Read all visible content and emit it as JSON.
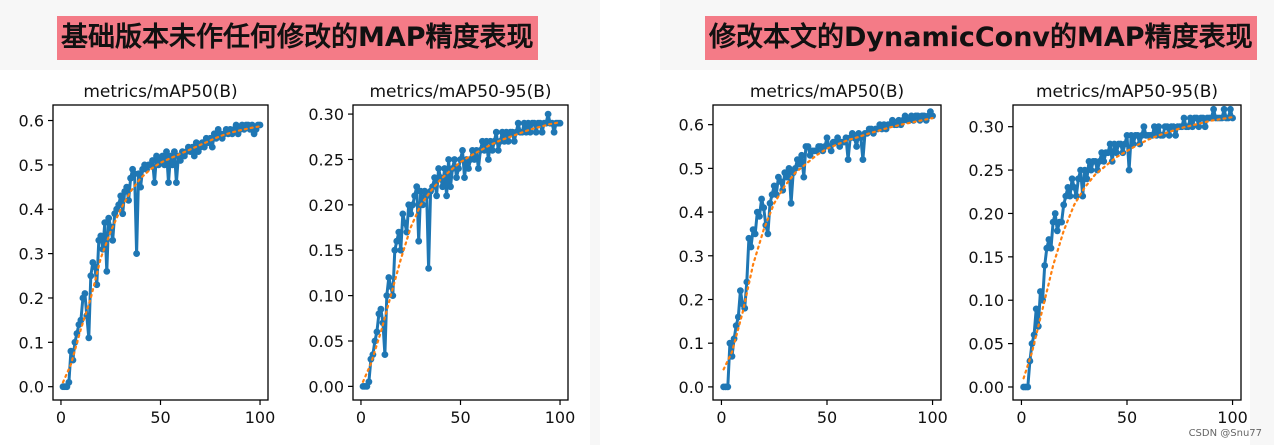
{
  "headings": {
    "left": "基础版本未作任何修改的MAP精度表现",
    "right": "修改本文的DynamicConv的MAP精度表现"
  },
  "watermark": "CSDN @Snu77",
  "colors": {
    "line": "#1f77b4",
    "smooth": "#ff7f0e",
    "heading_bg": "#f47b87"
  },
  "chart_data": [
    {
      "type": "line",
      "title": "metrics/mAP50(B)",
      "xlim": [
        -4,
        104
      ],
      "ylim": [
        -0.03,
        0.635
      ],
      "xticks": [
        0,
        50,
        100
      ],
      "yticks": [
        0.0,
        0.1,
        0.2,
        0.3,
        0.4,
        0.5,
        0.6
      ],
      "ytick_labels": [
        "0.0",
        "0.1",
        "0.2",
        "0.3",
        "0.4",
        "0.5",
        "0.6"
      ],
      "grid": false,
      "series": [
        {
          "kind": "results",
          "x": [
            1,
            2,
            3,
            4,
            5,
            6,
            7,
            8,
            9,
            10,
            11,
            12,
            13,
            14,
            15,
            16,
            17,
            18,
            19,
            20,
            21,
            22,
            23,
            24,
            25,
            26,
            27,
            28,
            29,
            30,
            31,
            32,
            33,
            34,
            35,
            36,
            37,
            38,
            39,
            40,
            41,
            42,
            43,
            44,
            45,
            46,
            47,
            48,
            49,
            50,
            51,
            52,
            53,
            54,
            55,
            56,
            57,
            58,
            59,
            60,
            61,
            62,
            63,
            64,
            65,
            66,
            67,
            68,
            69,
            70,
            71,
            72,
            73,
            74,
            75,
            76,
            77,
            78,
            79,
            80,
            81,
            82,
            83,
            84,
            85,
            86,
            87,
            88,
            89,
            90,
            91,
            92,
            93,
            94,
            95,
            96,
            97,
            98,
            99,
            100
          ],
          "y": [
            0.0,
            0.0,
            0.0,
            0.01,
            0.08,
            0.06,
            0.1,
            0.12,
            0.14,
            0.15,
            0.2,
            0.21,
            0.16,
            0.11,
            0.25,
            0.28,
            0.27,
            0.23,
            0.33,
            0.34,
            0.31,
            0.37,
            0.26,
            0.38,
            0.36,
            0.33,
            0.39,
            0.4,
            0.41,
            0.43,
            0.39,
            0.44,
            0.45,
            0.42,
            0.47,
            0.49,
            0.48,
            0.3,
            0.48,
            0.45,
            0.49,
            0.5,
            0.49,
            0.5,
            0.5,
            0.51,
            0.46,
            0.52,
            0.5,
            0.51,
            0.52,
            0.5,
            0.53,
            0.46,
            0.52,
            0.5,
            0.53,
            0.46,
            0.52,
            0.51,
            0.53,
            0.52,
            0.53,
            0.54,
            0.53,
            0.54,
            0.52,
            0.55,
            0.53,
            0.54,
            0.55,
            0.54,
            0.56,
            0.55,
            0.56,
            0.54,
            0.57,
            0.56,
            0.58,
            0.57,
            0.56,
            0.57,
            0.58,
            0.57,
            0.58,
            0.57,
            0.58,
            0.59,
            0.57,
            0.58,
            0.59,
            0.58,
            0.59,
            0.59,
            0.58,
            0.59,
            0.57,
            0.58,
            0.59,
            0.59
          ]
        },
        {
          "kind": "smooth",
          "x": [
            1,
            5,
            10,
            15,
            20,
            25,
            30,
            35,
            40,
            45,
            50,
            55,
            60,
            65,
            70,
            75,
            80,
            85,
            90,
            95,
            100
          ],
          "y": [
            0.01,
            0.05,
            0.13,
            0.2,
            0.29,
            0.35,
            0.4,
            0.44,
            0.47,
            0.49,
            0.505,
            0.515,
            0.525,
            0.535,
            0.545,
            0.555,
            0.565,
            0.572,
            0.578,
            0.583,
            0.587
          ]
        }
      ]
    },
    {
      "type": "line",
      "title": "metrics/mAP50-95(B)",
      "xlim": [
        -4,
        104
      ],
      "ylim": [
        -0.015,
        0.31
      ],
      "xticks": [
        0,
        50,
        100
      ],
      "yticks": [
        0.0,
        0.05,
        0.1,
        0.15,
        0.2,
        0.25,
        0.3
      ],
      "ytick_labels": [
        "0.00",
        "0.05",
        "0.10",
        "0.15",
        "0.20",
        "0.25",
        "0.30"
      ],
      "grid": false,
      "series": [
        {
          "kind": "results",
          "x": [
            1,
            2,
            3,
            4,
            5,
            6,
            7,
            8,
            9,
            10,
            11,
            12,
            13,
            14,
            15,
            16,
            17,
            18,
            19,
            20,
            21,
            22,
            23,
            24,
            25,
            26,
            27,
            28,
            29,
            30,
            31,
            32,
            33,
            34,
            35,
            36,
            37,
            38,
            39,
            40,
            41,
            42,
            43,
            44,
            45,
            46,
            47,
            48,
            49,
            50,
            51,
            52,
            53,
            54,
            55,
            56,
            57,
            58,
            59,
            60,
            61,
            62,
            63,
            64,
            65,
            66,
            67,
            68,
            69,
            70,
            71,
            72,
            73,
            74,
            75,
            76,
            77,
            78,
            79,
            80,
            81,
            82,
            83,
            84,
            85,
            86,
            87,
            88,
            89,
            90,
            91,
            92,
            93,
            94,
            95,
            96,
            97,
            98,
            99,
            100
          ],
          "y": [
            0.0,
            0.0,
            0.0,
            0.005,
            0.03,
            0.035,
            0.05,
            0.06,
            0.08,
            0.085,
            0.07,
            0.035,
            0.1,
            0.12,
            0.11,
            0.1,
            0.15,
            0.16,
            0.17,
            0.15,
            0.19,
            0.18,
            0.17,
            0.2,
            0.19,
            0.2,
            0.21,
            0.22,
            0.16,
            0.215,
            0.2,
            0.215,
            0.21,
            0.13,
            0.215,
            0.22,
            0.23,
            0.21,
            0.24,
            0.23,
            0.22,
            0.24,
            0.21,
            0.25,
            0.22,
            0.24,
            0.25,
            0.23,
            0.24,
            0.25,
            0.26,
            0.23,
            0.25,
            0.24,
            0.25,
            0.26,
            0.25,
            0.26,
            0.24,
            0.26,
            0.27,
            0.26,
            0.27,
            0.25,
            0.27,
            0.26,
            0.27,
            0.28,
            0.26,
            0.27,
            0.28,
            0.27,
            0.28,
            0.27,
            0.28,
            0.28,
            0.27,
            0.28,
            0.29,
            0.28,
            0.28,
            0.29,
            0.28,
            0.29,
            0.28,
            0.29,
            0.29,
            0.28,
            0.29,
            0.29,
            0.28,
            0.29,
            0.29,
            0.3,
            0.29,
            0.29,
            0.28,
            0.29,
            0.29,
            0.29
          ]
        },
        {
          "kind": "smooth",
          "x": [
            1,
            5,
            10,
            15,
            20,
            25,
            30,
            35,
            40,
            45,
            50,
            55,
            60,
            65,
            70,
            75,
            80,
            85,
            90,
            95,
            100
          ],
          "y": [
            0.005,
            0.025,
            0.06,
            0.1,
            0.14,
            0.175,
            0.2,
            0.215,
            0.228,
            0.238,
            0.247,
            0.254,
            0.26,
            0.266,
            0.271,
            0.275,
            0.279,
            0.283,
            0.286,
            0.289,
            0.291
          ]
        }
      ]
    },
    {
      "type": "line",
      "title": "metrics/mAP50(B)",
      "xlim": [
        -4,
        104
      ],
      "ylim": [
        -0.03,
        0.645
      ],
      "xticks": [
        0,
        50,
        100
      ],
      "yticks": [
        0.0,
        0.1,
        0.2,
        0.3,
        0.4,
        0.5,
        0.6
      ],
      "ytick_labels": [
        "0.0",
        "0.1",
        "0.2",
        "0.3",
        "0.4",
        "0.5",
        "0.6"
      ],
      "grid": false,
      "series": [
        {
          "kind": "results",
          "x": [
            1,
            2,
            3,
            4,
            5,
            6,
            7,
            8,
            9,
            10,
            11,
            12,
            13,
            14,
            15,
            16,
            17,
            18,
            19,
            20,
            21,
            22,
            23,
            24,
            25,
            26,
            27,
            28,
            29,
            30,
            31,
            32,
            33,
            34,
            35,
            36,
            37,
            38,
            39,
            40,
            41,
            42,
            43,
            44,
            45,
            46,
            47,
            48,
            49,
            50,
            51,
            52,
            53,
            54,
            55,
            56,
            57,
            58,
            59,
            60,
            61,
            62,
            63,
            64,
            65,
            66,
            67,
            68,
            69,
            70,
            71,
            72,
            73,
            74,
            75,
            76,
            77,
            78,
            79,
            80,
            81,
            82,
            83,
            84,
            85,
            86,
            87,
            88,
            89,
            90,
            91,
            92,
            93,
            94,
            95,
            96,
            97,
            98,
            99,
            100
          ],
          "y": [
            0.0,
            0.0,
            0.0,
            0.1,
            0.07,
            0.11,
            0.14,
            0.16,
            0.22,
            0.19,
            0.18,
            0.24,
            0.34,
            0.32,
            0.36,
            0.35,
            0.4,
            0.39,
            0.43,
            0.41,
            0.37,
            0.35,
            0.42,
            0.44,
            0.46,
            0.44,
            0.48,
            0.47,
            0.45,
            0.49,
            0.48,
            0.5,
            0.42,
            0.49,
            0.5,
            0.52,
            0.51,
            0.53,
            0.48,
            0.55,
            0.55,
            0.53,
            0.54,
            0.54,
            0.54,
            0.55,
            0.55,
            0.54,
            0.55,
            0.57,
            0.55,
            0.54,
            0.56,
            0.56,
            0.57,
            0.55,
            0.56,
            0.56,
            0.57,
            0.52,
            0.57,
            0.58,
            0.57,
            0.55,
            0.58,
            0.57,
            0.52,
            0.58,
            0.58,
            0.59,
            0.59,
            0.58,
            0.59,
            0.59,
            0.6,
            0.59,
            0.6,
            0.59,
            0.6,
            0.6,
            0.61,
            0.6,
            0.6,
            0.61,
            0.6,
            0.61,
            0.62,
            0.61,
            0.61,
            0.62,
            0.61,
            0.62,
            0.62,
            0.61,
            0.62,
            0.62,
            0.61,
            0.62,
            0.63,
            0.62
          ]
        },
        {
          "kind": "smooth",
          "x": [
            1,
            5,
            10,
            15,
            20,
            25,
            30,
            35,
            40,
            45,
            50,
            55,
            60,
            65,
            70,
            75,
            80,
            85,
            90,
            95,
            100
          ],
          "y": [
            0.04,
            0.08,
            0.17,
            0.28,
            0.36,
            0.42,
            0.46,
            0.49,
            0.51,
            0.53,
            0.545,
            0.555,
            0.565,
            0.572,
            0.58,
            0.587,
            0.594,
            0.6,
            0.605,
            0.61,
            0.615
          ]
        }
      ]
    },
    {
      "type": "line",
      "title": "metrics/mAP50-95(B)",
      "xlim": [
        -4,
        104
      ],
      "ylim": [
        -0.015,
        0.325
      ],
      "xticks": [
        0,
        50,
        100
      ],
      "yticks": [
        0.0,
        0.05,
        0.1,
        0.15,
        0.2,
        0.25,
        0.3
      ],
      "ytick_labels": [
        "0.00",
        "0.05",
        "0.10",
        "0.15",
        "0.20",
        "0.25",
        "0.30"
      ],
      "grid": false,
      "series": [
        {
          "kind": "results",
          "x": [
            1,
            2,
            3,
            4,
            5,
            6,
            7,
            8,
            9,
            10,
            11,
            12,
            13,
            14,
            15,
            16,
            17,
            18,
            19,
            20,
            21,
            22,
            23,
            24,
            25,
            26,
            27,
            28,
            29,
            30,
            31,
            32,
            33,
            34,
            35,
            36,
            37,
            38,
            39,
            40,
            41,
            42,
            43,
            44,
            45,
            46,
            47,
            48,
            49,
            50,
            51,
            52,
            53,
            54,
            55,
            56,
            57,
            58,
            59,
            60,
            61,
            62,
            63,
            64,
            65,
            66,
            67,
            68,
            69,
            70,
            71,
            72,
            73,
            74,
            75,
            76,
            77,
            78,
            79,
            80,
            81,
            82,
            83,
            84,
            85,
            86,
            87,
            88,
            89,
            90,
            91,
            92,
            93,
            94,
            95,
            96,
            97,
            98,
            99,
            100
          ],
          "y": [
            0.0,
            0.0,
            0.0,
            0.03,
            0.05,
            0.06,
            0.09,
            0.07,
            0.11,
            0.1,
            0.14,
            0.16,
            0.17,
            0.16,
            0.19,
            0.2,
            0.18,
            0.19,
            0.19,
            0.21,
            0.22,
            0.23,
            0.22,
            0.24,
            0.23,
            0.22,
            0.24,
            0.25,
            0.22,
            0.25,
            0.24,
            0.26,
            0.25,
            0.26,
            0.26,
            0.25,
            0.26,
            0.27,
            0.26,
            0.27,
            0.27,
            0.28,
            0.26,
            0.28,
            0.27,
            0.28,
            0.28,
            0.27,
            0.28,
            0.29,
            0.25,
            0.29,
            0.28,
            0.29,
            0.29,
            0.28,
            0.29,
            0.3,
            0.29,
            0.29,
            0.29,
            0.29,
            0.3,
            0.29,
            0.3,
            0.29,
            0.29,
            0.3,
            0.3,
            0.29,
            0.3,
            0.3,
            0.29,
            0.3,
            0.3,
            0.3,
            0.31,
            0.3,
            0.3,
            0.31,
            0.3,
            0.31,
            0.31,
            0.3,
            0.31,
            0.31,
            0.3,
            0.31,
            0.31,
            0.31,
            0.32,
            0.31,
            0.31,
            0.31,
            0.31,
            0.32,
            0.31,
            0.31,
            0.32,
            0.31
          ]
        },
        {
          "kind": "smooth",
          "x": [
            1,
            5,
            10,
            15,
            20,
            25,
            30,
            35,
            40,
            45,
            50,
            55,
            60,
            65,
            70,
            75,
            80,
            85,
            90,
            95,
            100
          ],
          "y": [
            0.01,
            0.04,
            0.09,
            0.14,
            0.18,
            0.21,
            0.23,
            0.245,
            0.255,
            0.265,
            0.272,
            0.279,
            0.285,
            0.29,
            0.294,
            0.298,
            0.301,
            0.304,
            0.307,
            0.309,
            0.311
          ]
        }
      ]
    }
  ]
}
